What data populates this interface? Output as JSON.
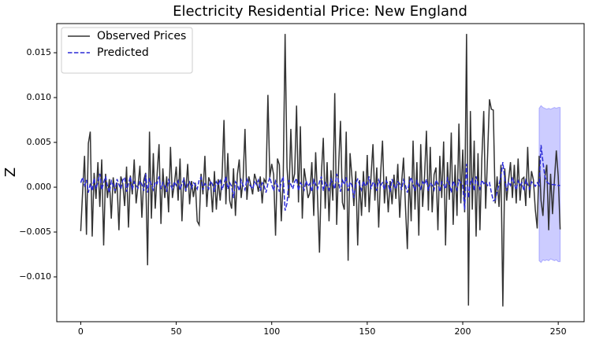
{
  "chart_data": {
    "type": "line",
    "title": "Electricity Residential Price: New England",
    "y_label": "Z",
    "legend": "upper left",
    "xlim": [
      -12.55,
      263.55
    ],
    "ylim": [
      -0.015,
      0.01825
    ],
    "xticks": [
      0,
      50,
      100,
      150,
      200,
      250
    ],
    "yticks": [
      {
        "value": -0.01,
        "label": "−0.010"
      },
      {
        "value": -0.005,
        "label": "−0.005"
      },
      {
        "value": 0,
        "label": "0.000"
      },
      {
        "value": 0.005,
        "label": "0.005"
      },
      {
        "value": 0.01,
        "label": "0.010"
      },
      {
        "value": 0.015,
        "label": "0.015"
      }
    ],
    "x": [
      0,
      1,
      2,
      3,
      4,
      5,
      6,
      7,
      8,
      9,
      10,
      11,
      12,
      13,
      14,
      15,
      16,
      17,
      18,
      19,
      20,
      21,
      22,
      23,
      24,
      25,
      26,
      27,
      28,
      29,
      30,
      31,
      32,
      33,
      34,
      35,
      36,
      37,
      38,
      39,
      40,
      41,
      42,
      43,
      44,
      45,
      46,
      47,
      48,
      49,
      50,
      51,
      52,
      53,
      54,
      55,
      56,
      57,
      58,
      59,
      60,
      61,
      62,
      63,
      64,
      65,
      66,
      67,
      68,
      69,
      70,
      71,
      72,
      73,
      74,
      75,
      76,
      77,
      78,
      79,
      80,
      81,
      82,
      83,
      84,
      85,
      86,
      87,
      88,
      89,
      90,
      91,
      92,
      93,
      94,
      95,
      96,
      97,
      98,
      99,
      100,
      101,
      102,
      103,
      104,
      105,
      106,
      107,
      108,
      109,
      110,
      111,
      112,
      113,
      114,
      115,
      116,
      117,
      118,
      119,
      120,
      121,
      122,
      123,
      124,
      125,
      126,
      127,
      128,
      129,
      130,
      131,
      132,
      133,
      134,
      135,
      136,
      137,
      138,
      139,
      140,
      141,
      142,
      143,
      144,
      145,
      146,
      147,
      148,
      149,
      150,
      151,
      152,
      153,
      154,
      155,
      156,
      157,
      158,
      159,
      160,
      161,
      162,
      163,
      164,
      165,
      166,
      167,
      168,
      169,
      170,
      171,
      172,
      173,
      174,
      175,
      176,
      177,
      178,
      179,
      180,
      181,
      182,
      183,
      184,
      185,
      186,
      187,
      188,
      189,
      190,
      191,
      192,
      193,
      194,
      195,
      196,
      197,
      198,
      199,
      200,
      201,
      202,
      203,
      204,
      205,
      206,
      207,
      208,
      209,
      210,
      211,
      212,
      213,
      214,
      215,
      216,
      217,
      218,
      219,
      220,
      221,
      222,
      223,
      224,
      225,
      226,
      227,
      228,
      229,
      230,
      231,
      232,
      233,
      234,
      235,
      236,
      237,
      238,
      239,
      240,
      241,
      242,
      243,
      244,
      245,
      246,
      247,
      248,
      249,
      250,
      251
    ],
    "series": [
      {
        "name": "Observed Prices",
        "color": "#333333",
        "linestyle": "solid",
        "values": [
          -0.0049,
          -0.0005,
          0.0035,
          -0.0053,
          0.0049,
          0.0062,
          -0.0055,
          0.0016,
          -0.0013,
          0.0028,
          -0.0022,
          0.0031,
          -0.0065,
          0.0015,
          -0.0012,
          0.0009,
          -0.0035,
          0.0011,
          -0.0007,
          0.0005,
          -0.0048,
          0.0012,
          0.0004,
          -0.0021,
          0.0023,
          -0.0045,
          0.0013,
          -0.0008,
          0.0031,
          -0.0018,
          0.0002,
          0.0024,
          -0.0034,
          0.0008,
          0.0016,
          -0.0087,
          0.0062,
          -0.0035,
          0.0038,
          -0.0024,
          0.0015,
          0.0048,
          -0.0041,
          0.0021,
          -0.0012,
          0.0012,
          -0.0028,
          0.0045,
          -0.0012,
          0.0003,
          0.0023,
          -0.0015,
          0.0032,
          -0.0038,
          0.0011,
          -0.0005,
          0.0026,
          -0.0019,
          0.0007,
          -0.0011,
          0.0005,
          -0.0038,
          -0.0042,
          0.0015,
          -0.0008,
          0.0035,
          -0.0022,
          0.0011,
          0.0005,
          -0.0028,
          0.0018,
          -0.0025,
          0.0009,
          -0.0015,
          0.0012,
          0.0075,
          -0.0019,
          0.0038,
          -0.0015,
          -0.0024,
          0.0021,
          -0.0032,
          0.0014,
          0.0031,
          -0.0012,
          0.0008,
          0.0065,
          -0.0014,
          0.0012,
          0.0003,
          -0.0008,
          0.0015,
          0.0007,
          -0.0005,
          0.0012,
          -0.0018,
          0.0009,
          0.0005,
          0.0103,
          0.0011,
          0.0026,
          0.0014,
          -0.0054,
          0.0032,
          0.0025,
          -0.0038,
          0.0008,
          0.0171,
          0.0022,
          -0.0012,
          0.0065,
          0.0005,
          0.0015,
          0.0091,
          -0.0017,
          0.0068,
          -0.0035,
          0.0021,
          0.0006,
          -0.0012,
          -0.0006,
          0.0028,
          -0.0032,
          0.0039,
          -0.0012,
          -0.0073,
          0.0015,
          0.0055,
          -0.0024,
          0.0028,
          -0.0038,
          0.0019,
          -0.0015,
          0.0105,
          -0.0042,
          0.0022,
          0.0074,
          -0.0017,
          -0.0025,
          0.0062,
          -0.0082,
          0.0038,
          0.0011,
          -0.0021,
          0.0018,
          -0.0065,
          0.0008,
          -0.0032,
          0.0018,
          -0.0022,
          0.0036,
          -0.0028,
          0.0012,
          0.0048,
          -0.0015,
          0.0022,
          -0.0045,
          0.0015,
          0.0052,
          -0.0018,
          0.0012,
          -0.0028,
          0.0007,
          -0.0019,
          0.0014,
          -0.0013,
          0.0026,
          -0.0034,
          0.0005,
          0.0033,
          -0.0021,
          -0.0069,
          0.0012,
          -0.0038,
          0.0052,
          -0.0025,
          0.0028,
          -0.0054,
          0.0048,
          -0.0022,
          0.0012,
          0.0063,
          -0.0026,
          0.0045,
          -0.0028,
          0.0014,
          0.0022,
          -0.0048,
          0.0035,
          -0.0012,
          0.0051,
          -0.0065,
          0.0028,
          -0.0014,
          0.0061,
          -0.0042,
          0.0025,
          -0.0032,
          0.0071,
          -0.0018,
          0.0042,
          -0.0028,
          0.0171,
          -0.0132,
          0.0085,
          -0.0025,
          0.0052,
          -0.0055,
          0.0038,
          -0.0048,
          0.0032,
          0.0085,
          -0.0024,
          0.0035,
          0.0098,
          0.0087,
          0.0086,
          -0.0018,
          0.0012,
          -0.0022,
          0.0025,
          -0.0133,
          0.0021,
          -0.0015,
          0.0008,
          0.0028,
          -0.0012,
          0.0025,
          -0.0018,
          0.0032,
          -0.0015,
          0.0009,
          0.0011,
          -0.0021,
          0.0045,
          -0.0012,
          0.0018,
          0.0008,
          -0.0025,
          -0.0046,
          0.0035,
          -0.0015,
          -0.0032,
          0.0012,
          0.0025,
          -0.0048,
          0.0015,
          -0.003,
          0.0008,
          0.0041,
          0.0012,
          -0.0047
        ]
      },
      {
        "name": "Predicted",
        "color": "#2a2ad6",
        "linestyle": "dashed",
        "values": [
          0.0005,
          0.0011,
          0.0002,
          0.0008,
          -0.0006,
          0.0004,
          -0.0004,
          0.001,
          -0.0002,
          0.0006,
          0.0015,
          -0.0003,
          0.0005,
          0.0012,
          0.0001,
          -0.0006,
          0.0007,
          0.0002,
          -0.0004,
          0.0009,
          0.0003,
          -0.0002,
          0.0008,
          0.0011,
          -0.0005,
          0.0004,
          0.0012,
          -0.0003,
          0.0006,
          0.0002,
          -0.0001,
          0.0007,
          0.0003,
          -0.0004,
          0.0015,
          -0.0006,
          0.001,
          0.0002,
          -0.0003,
          0.0006,
          0.0004,
          0.0012,
          -0.0002,
          0.0005,
          0.0001,
          -0.0005,
          0.0008,
          0.0003,
          -0.0002,
          0.0006,
          0.0002,
          0.0007,
          -0.0003,
          0.0004,
          0.0009,
          -0.0004,
          0.0003,
          0.0006,
          -0.0001,
          0.0005,
          0.0003,
          -0.0002,
          0.0008,
          0.0011,
          -0.0003,
          0.0004,
          0.0002,
          -0.0002,
          0.0007,
          0.0003,
          -0.0005,
          0.0006,
          0.0002,
          0.0009,
          -0.0003,
          0.0004,
          0.0012,
          -0.0002,
          0.0005,
          0.0001,
          -0.0012,
          0.0006,
          0.0003,
          -0.0004,
          0.0008,
          0.0002,
          -0.0003,
          0.0009,
          0.0004,
          0.0001,
          -0.0002,
          0.0006,
          0.0003,
          0.0008,
          -0.0004,
          0.0005,
          0.0002,
          -0.0006,
          0.0004,
          0.0011,
          0.0003,
          -0.0004,
          0.0007,
          0.0002,
          -0.0005,
          0.0006,
          0.0012,
          -0.0026,
          -0.0018,
          0.0008,
          0.0003,
          -0.0002,
          0.0006,
          0.001,
          -0.0004,
          0.0005,
          0.0002,
          -0.0003,
          0.0007,
          0.0001,
          0.0004,
          -0.0005,
          0.0008,
          0.0003,
          -0.0002,
          0.0006,
          0.0012,
          -0.0004,
          0.0005,
          0.0002,
          -0.0003,
          0.0009,
          0.0004,
          -0.0002,
          0.0015,
          0.0006,
          -0.0005,
          0.0008,
          0.0003,
          0.0011,
          -0.0004,
          0.0006,
          0.0002,
          -0.0012,
          0.0005,
          0.0009,
          0.0003,
          -0.0003,
          0.0007,
          0.0001,
          0.0004,
          0.0012,
          -0.0002,
          0.0006,
          0.0003,
          -0.0004,
          0.0008,
          0.0002,
          0.0005,
          -0.0003,
          0.0007,
          0.0003,
          -0.0005,
          0.0009,
          0.0002,
          -0.0002,
          0.0006,
          0.0004,
          -0.0003,
          0.0008,
          0.0002,
          -0.0006,
          0.0005,
          0.0011,
          0.0003,
          -0.0004,
          0.0007,
          0.0002,
          -0.0002,
          0.0006,
          0.0003,
          0.0009,
          -0.0004,
          0.0005,
          0.0002,
          -0.0003,
          0.0008,
          0.0004,
          -0.0005,
          0.0006,
          0.0003,
          -0.0002,
          0.001,
          0.0004,
          -0.0006,
          0.0007,
          0.0002,
          -0.0003,
          0.0008,
          0.0005,
          0.0002,
          -0.0025,
          0.0026,
          -0.0012,
          0.0005,
          0.0009,
          -0.0004,
          0.0012,
          0.0003,
          -0.0002,
          0.0008,
          0.0004,
          0.0006,
          0.0002,
          0.0005,
          -0.0006,
          -0.0015,
          -0.0014,
          -0.0005,
          0.0003,
          0.0012,
          0.0028,
          0.0009,
          -0.0004,
          0.0006,
          0.0002,
          0.0011,
          0.0004,
          -0.0003,
          0.0007,
          0.0002,
          0.0005,
          -0.0004,
          0.0008,
          0.0003,
          -0.0002,
          0.0006,
          0.0004,
          0.0001,
          0.0005,
          0.0002,
          0.0047,
          0.0028,
          0.0012,
          0.0006,
          0.0004,
          0.0003,
          0.0003,
          0.0003,
          0.0002,
          0.0002,
          0.0002
        ]
      }
    ],
    "band": {
      "color": "#0000ff",
      "x": [
        240,
        241,
        242,
        243,
        244,
        245,
        246,
        247,
        248,
        249,
        250,
        251
      ],
      "upper": [
        0.0088,
        0.0091,
        0.0089,
        0.0088,
        0.0087,
        0.0088,
        0.0087,
        0.0088,
        0.0089,
        0.0088,
        0.0089,
        0.0089
      ],
      "lower": [
        -0.0082,
        -0.0084,
        -0.0081,
        -0.0082,
        -0.0081,
        -0.0082,
        -0.008,
        -0.0081,
        -0.0082,
        -0.0081,
        -0.0083,
        -0.0083
      ]
    }
  }
}
